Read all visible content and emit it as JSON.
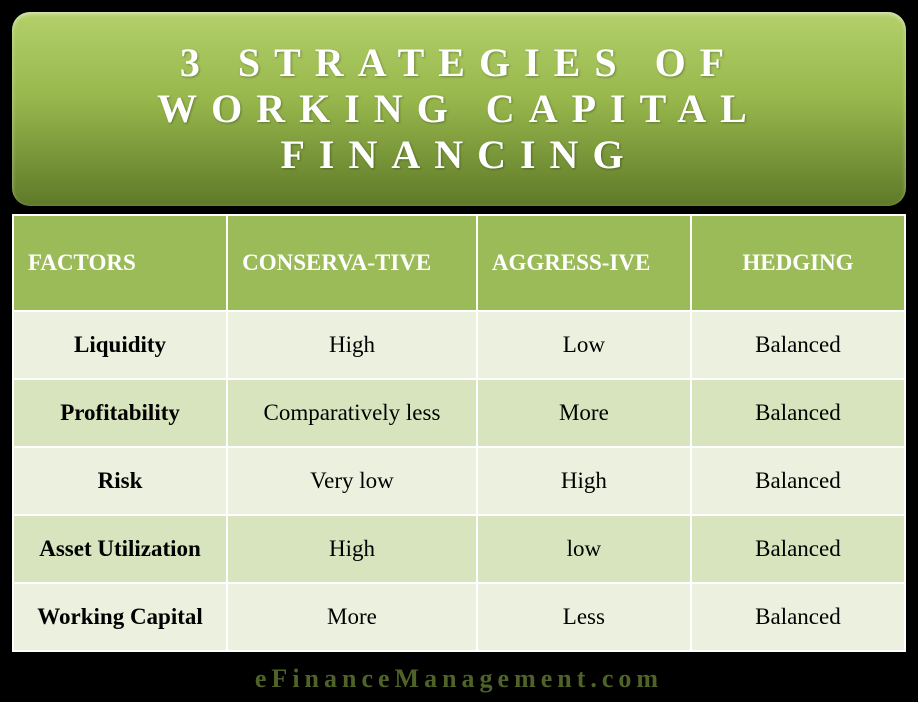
{
  "title": "3 STRATEGIES OF WORKING CAPITAL FINANCING",
  "columns": [
    "FACTORS",
    "CONSERVA-TIVE",
    "AGGRESS-IVE",
    "HEDGING"
  ],
  "rows": [
    {
      "factor": "Liquidity",
      "conservative": "High",
      "aggressive": "Low",
      "hedging": "Balanced"
    },
    {
      "factor": "Profitability",
      "conservative": "Comparatively less",
      "aggressive": "More",
      "hedging": "Balanced"
    },
    {
      "factor": "Risk",
      "conservative": "Very low",
      "aggressive": "High",
      "hedging": "Balanced"
    },
    {
      "factor": "Asset Utilization",
      "conservative": "High",
      "aggressive": "low",
      "hedging": "Balanced"
    },
    {
      "factor": "Working Capital",
      "conservative": "More",
      "aggressive": "Less",
      "hedging": "Balanced"
    }
  ],
  "footer": "eFinanceManagement.com",
  "style": {
    "title_bg_gradient": [
      "#b3d06a",
      "#97b74c",
      "#5e7a28"
    ],
    "title_text_color": "#ffffff",
    "title_fontsize": 40,
    "title_letter_spacing": 14,
    "header_bg": "#9bbb59",
    "header_text_color": "#ffffff",
    "header_fontsize": 23,
    "row_odd_bg": "#ebf1de",
    "row_even_bg": "#d7e4bd",
    "cell_fontsize": 23,
    "cell_text_color": "#000000",
    "border_color": "#ffffff",
    "footer_color": "#4f6228",
    "footer_fontsize": 26,
    "footer_letter_spacing": 5,
    "background_color": "#000000",
    "font_family": "Book Antiqua / Georgia serif"
  }
}
